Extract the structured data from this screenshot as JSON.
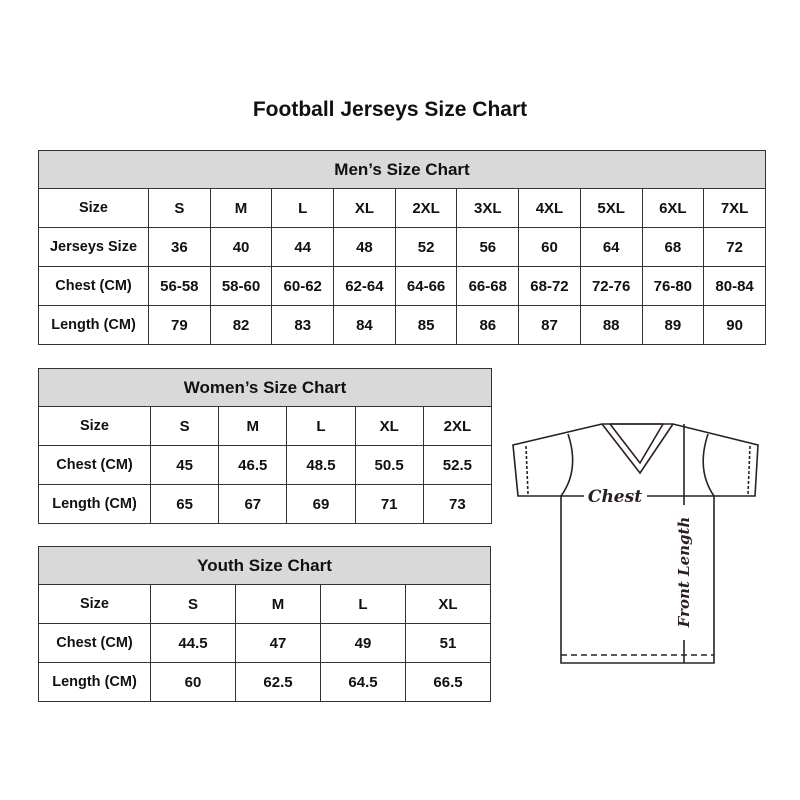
{
  "title": "Football Jerseys Size Chart",
  "men": {
    "title": "Men’s Size Chart",
    "rows": [
      {
        "label": "Size",
        "values": [
          "S",
          "M",
          "L",
          "XL",
          "2XL",
          "3XL",
          "4XL",
          "5XL",
          "6XL",
          "7XL"
        ]
      },
      {
        "label": "Jerseys Size",
        "values": [
          "36",
          "40",
          "44",
          "48",
          "52",
          "56",
          "60",
          "64",
          "68",
          "72"
        ]
      },
      {
        "label": "Chest (CM)",
        "values": [
          "56-58",
          "58-60",
          "60-62",
          "62-64",
          "64-66",
          "66-68",
          "68-72",
          "72-76",
          "76-80",
          "80-84"
        ]
      },
      {
        "label": "Length (CM)",
        "values": [
          "79",
          "82",
          "83",
          "84",
          "85",
          "86",
          "87",
          "88",
          "89",
          "90"
        ]
      }
    ]
  },
  "women": {
    "title": "Women’s Size Chart",
    "rows": [
      {
        "label": "Size",
        "values": [
          "S",
          "M",
          "L",
          "XL",
          "2XL"
        ]
      },
      {
        "label": "Chest (CM)",
        "values": [
          "45",
          "46.5",
          "48.5",
          "50.5",
          "52.5"
        ]
      },
      {
        "label": "Length (CM)",
        "values": [
          "65",
          "67",
          "69",
          "71",
          "73"
        ]
      }
    ]
  },
  "youth": {
    "title": "Youth Size Chart",
    "rows": [
      {
        "label": "Size",
        "values": [
          "S",
          "M",
          "L",
          "XL"
        ]
      },
      {
        "label": "Chest (CM)",
        "values": [
          "44.5",
          "47",
          "49",
          "51"
        ]
      },
      {
        "label": "Length (CM)",
        "values": [
          "60",
          "62.5",
          "64.5",
          "66.5"
        ]
      }
    ]
  },
  "diagram": {
    "chest_label": "Chest",
    "length_label": "Front Length"
  }
}
